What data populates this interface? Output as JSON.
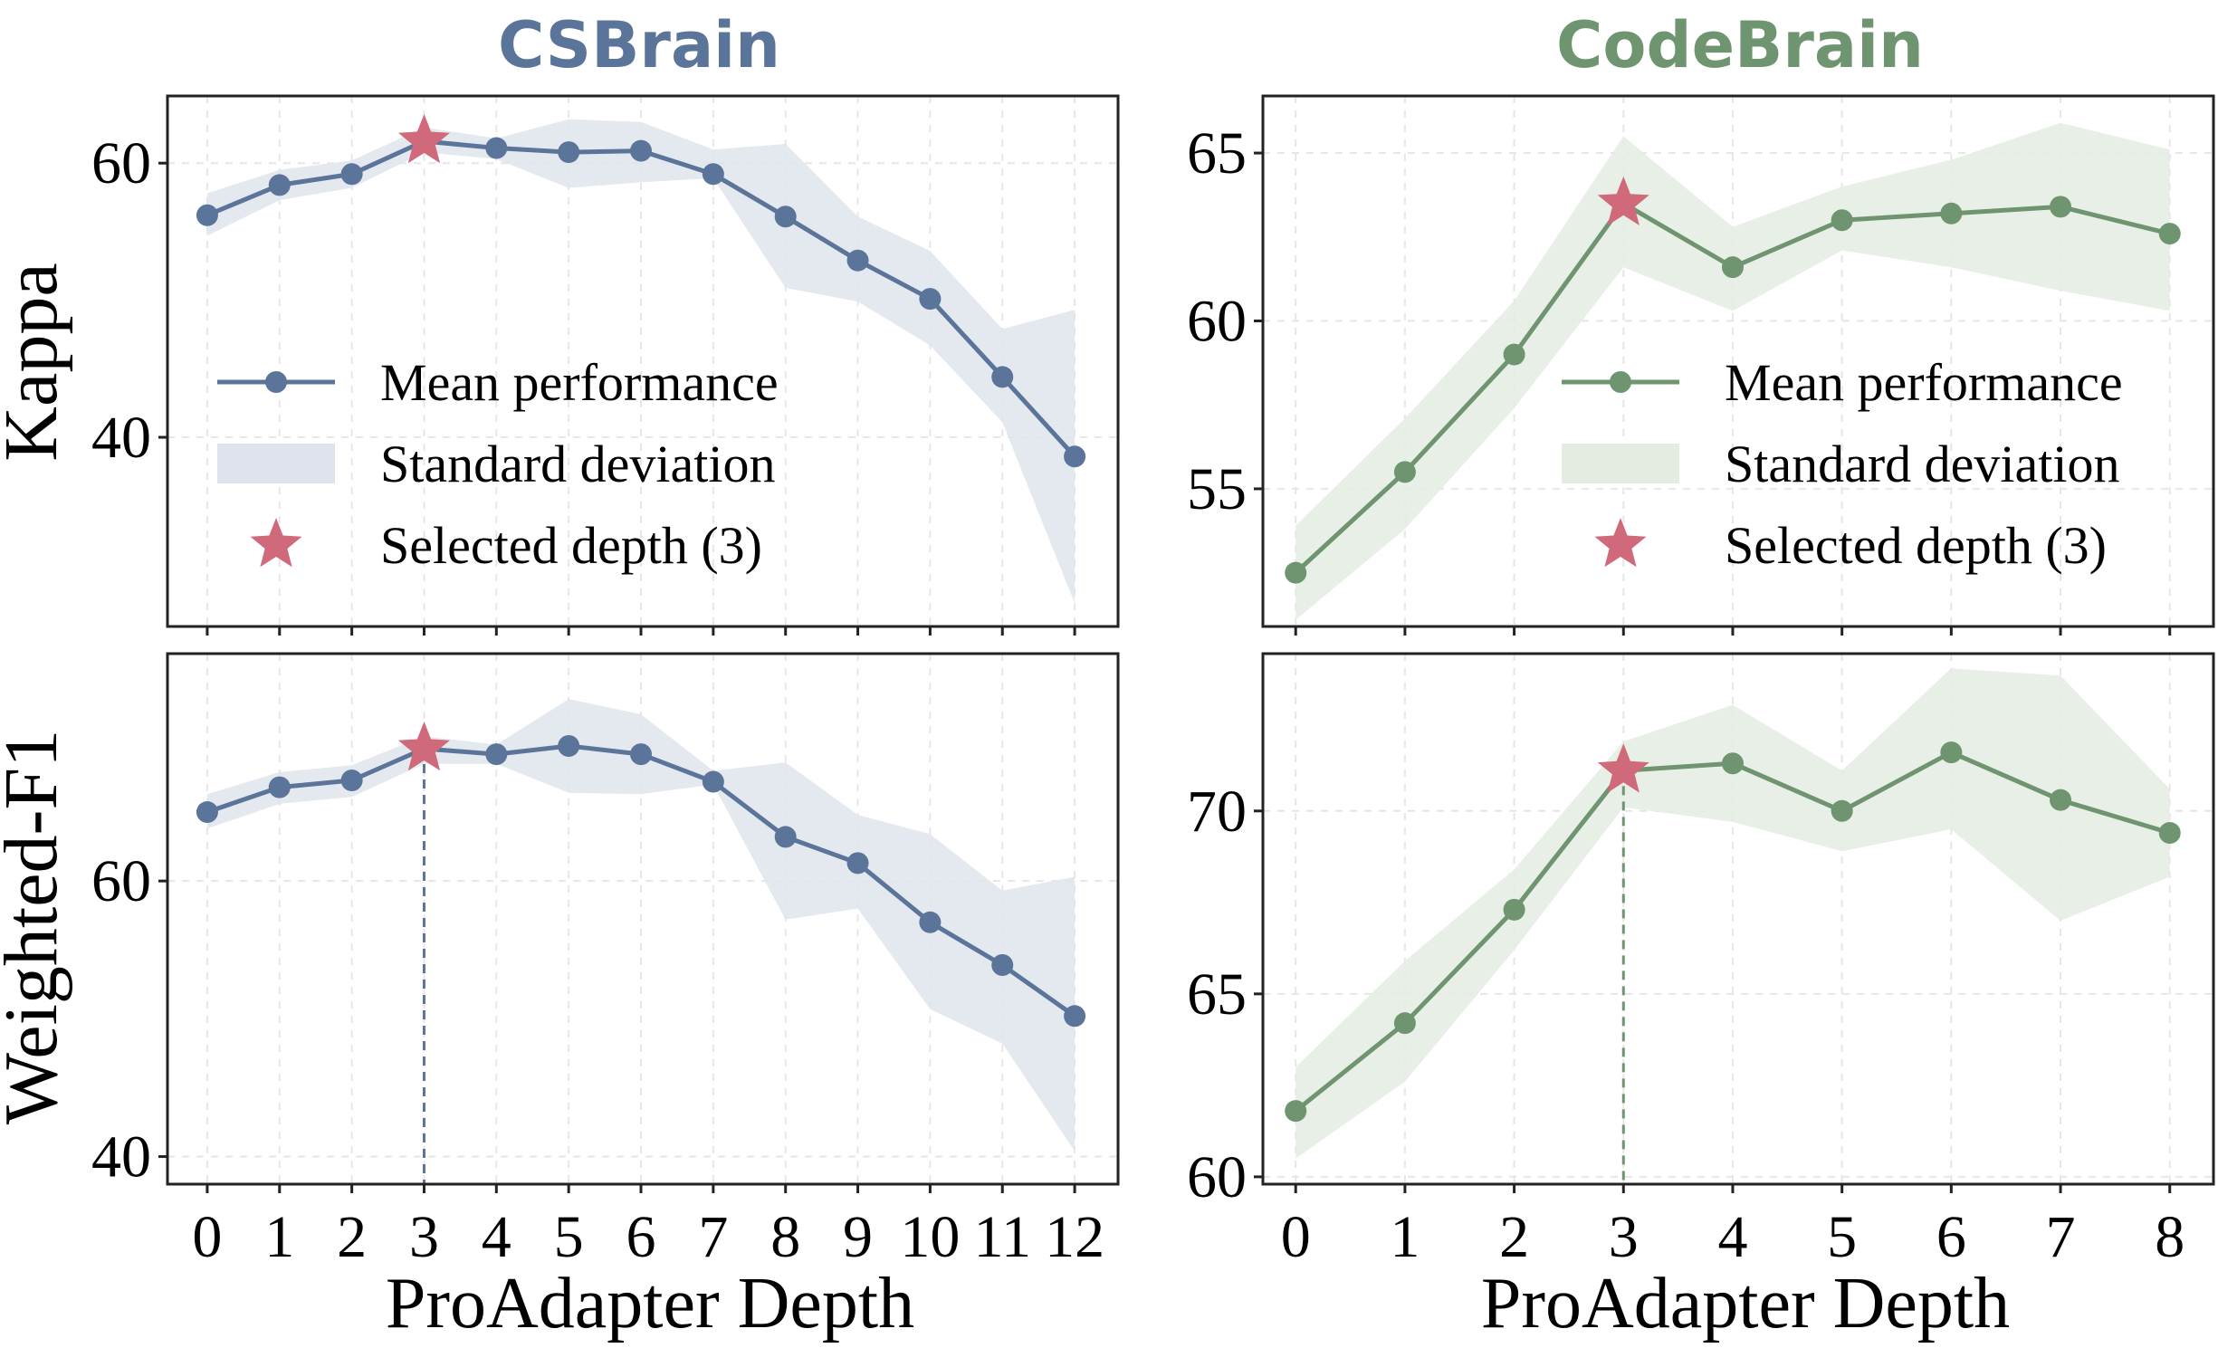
{
  "figure": {
    "xlabel": "ProAdapter Depth",
    "row_labels": [
      "Kappa",
      "Weighted-F1"
    ],
    "columns": [
      {
        "title": "CSBrain",
        "color": "#5b7499",
        "band_color": "#dfe4ec"
      },
      {
        "title": "CodeBrain",
        "color": "#6f9470",
        "band_color": "#e4ece2"
      }
    ],
    "star_color": "#d0697a",
    "legend": {
      "mean": "Mean performance",
      "std": "Standard deviation",
      "selected": "Selected depth (3)"
    }
  },
  "chart_data": [
    {
      "type": "line",
      "model": "CSBrain",
      "metric": "Kappa",
      "x": [
        0,
        1,
        2,
        3,
        4,
        5,
        6,
        7,
        8,
        9,
        10,
        11,
        12
      ],
      "mean": [
        56.2,
        58.4,
        59.2,
        61.6,
        61.1,
        60.8,
        60.9,
        59.2,
        56.1,
        52.9,
        50.1,
        44.4,
        38.6
      ],
      "lower": [
        54.7,
        57.3,
        58.2,
        60.8,
        60.3,
        58.2,
        58.6,
        58.9,
        50.9,
        49.9,
        46.7,
        41.1,
        27.9
      ],
      "upper": [
        57.8,
        59.5,
        60.2,
        62.6,
        61.8,
        63.2,
        63.0,
        61.0,
        61.4,
        56.1,
        53.6,
        47.9,
        49.3
      ],
      "selected_x": 3,
      "xlim": [
        -0.55,
        12.6
      ],
      "ylim": [
        26.2,
        64.9
      ],
      "yticks": [
        40,
        60
      ],
      "show_xticklabels": false,
      "legend": "center-left",
      "grid": true
    },
    {
      "type": "line",
      "model": "CodeBrain",
      "metric": "Kappa",
      "x": [
        0,
        1,
        2,
        3,
        4,
        5,
        6,
        7,
        8
      ],
      "mean": [
        52.5,
        55.5,
        59.0,
        63.5,
        61.6,
        63.0,
        63.2,
        63.4,
        62.6
      ],
      "lower": [
        51.1,
        53.8,
        57.4,
        61.6,
        60.3,
        62.1,
        61.6,
        60.9,
        60.3
      ],
      "upper": [
        53.9,
        57.1,
        60.6,
        65.5,
        62.8,
        64.0,
        64.8,
        65.9,
        65.1
      ],
      "selected_x": 3,
      "xlim": [
        -0.3,
        8.4
      ],
      "ylim": [
        50.9,
        66.7
      ],
      "yticks": [
        55,
        60,
        65
      ],
      "show_xticklabels": false,
      "legend": "center-right",
      "grid": true
    },
    {
      "type": "line",
      "model": "CSBrain",
      "metric": "Weighted-F1",
      "x": [
        0,
        1,
        2,
        3,
        4,
        5,
        6,
        7,
        8,
        9,
        10,
        11,
        12
      ],
      "mean": [
        65.0,
        66.8,
        67.3,
        69.6,
        69.2,
        69.8,
        69.2,
        67.2,
        63.2,
        61.3,
        57.0,
        53.9,
        50.2
      ],
      "lower": [
        63.8,
        65.6,
        66.1,
        68.5,
        68.5,
        66.4,
        66.3,
        67.0,
        57.2,
        58.0,
        50.7,
        48.2,
        40.4
      ],
      "upper": [
        66.3,
        67.9,
        68.4,
        70.5,
        69.9,
        73.2,
        72.1,
        68.0,
        68.6,
        64.8,
        63.4,
        59.3,
        60.3
      ],
      "selected_x": 3,
      "xlim": [
        -0.55,
        12.6
      ],
      "ylim": [
        38.0,
        76.5
      ],
      "yticks": [
        40,
        60
      ],
      "xticks": [
        "0",
        "1",
        "2",
        "3",
        "4",
        "5",
        "6",
        "7",
        "8",
        "9",
        "10",
        "11",
        "12"
      ],
      "show_xticklabels": true,
      "grid": true
    },
    {
      "type": "line",
      "model": "CodeBrain",
      "metric": "Weighted-F1",
      "x": [
        0,
        1,
        2,
        3,
        4,
        5,
        6,
        7,
        8
      ],
      "mean": [
        61.8,
        64.2,
        67.3,
        71.1,
        71.3,
        70.0,
        71.6,
        70.3,
        69.4
      ],
      "lower": [
        60.5,
        62.6,
        66.2,
        70.1,
        69.7,
        68.9,
        69.5,
        67.0,
        68.2
      ],
      "upper": [
        63.0,
        65.9,
        68.4,
        71.9,
        72.9,
        71.1,
        73.9,
        73.7,
        70.6
      ],
      "selected_x": 3,
      "xlim": [
        -0.3,
        8.4
      ],
      "ylim": [
        59.8,
        74.3
      ],
      "yticks": [
        60,
        65,
        70
      ],
      "xticks": [
        "0",
        "1",
        "2",
        "3",
        "4",
        "5",
        "6",
        "7",
        "8"
      ],
      "show_xticklabels": true,
      "grid": true
    }
  ]
}
